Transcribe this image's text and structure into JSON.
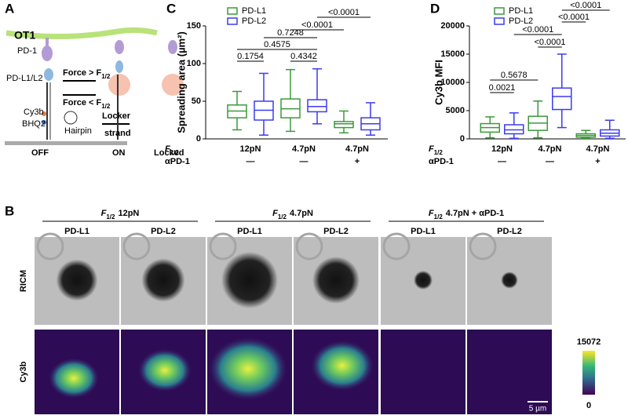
{
  "panel_a": {
    "letter": "A",
    "cell": "OT1",
    "receptor": "PD-1",
    "ligand": "PD-L1/L2",
    "force_high": "Force > F",
    "force_high_sub": "1/2",
    "force_low": "Force < F",
    "force_low_sub": "1/2",
    "dye": "Cy3b",
    "quencher": "BHQ2",
    "hairpin": "Hairpin",
    "locker": [
      "Locker",
      "strand"
    ],
    "states": [
      "OFF",
      "ON",
      "Locked"
    ]
  },
  "chart_data": [
    {
      "type": "box",
      "letter": "C",
      "y_label": "Spreading area (µm²)",
      "ylim": [
        0,
        150
      ],
      "yticks": [
        0,
        50,
        100,
        150
      ],
      "legend": "top-left",
      "x_rows": [
        {
          "label": "F",
          "label_sub": "1/2",
          "values": [
            "12pN",
            "4.7pN",
            "4.7pN"
          ]
        },
        {
          "label": "αPD-1",
          "values": [
            "—",
            "—",
            "+"
          ]
        }
      ],
      "series": [
        {
          "name": "PD-L1",
          "color": "#3a9a3a",
          "values": [
            {
              "min": 12,
              "q1": 28,
              "median": 37,
              "q3": 45,
              "max": 63
            },
            {
              "min": 10,
              "q1": 28,
              "median": 40,
              "q3": 53,
              "max": 92
            },
            {
              "min": 8,
              "q1": 15,
              "median": 20,
              "q3": 23,
              "max": 37
            }
          ]
        },
        {
          "name": "PD-L2",
          "color": "#3b3bf0",
          "values": [
            {
              "min": 5,
              "q1": 25,
              "median": 38,
              "q3": 50,
              "max": 87
            },
            {
              "min": 20,
              "q1": 36,
              "median": 43,
              "q3": 52,
              "max": 93
            },
            {
              "min": 5,
              "q1": 12,
              "median": 20,
              "q3": 28,
              "max": 48
            }
          ]
        }
      ],
      "p_values": [
        0.1754,
        0.4575,
        0.7248,
        0.4342,
        "<0.0001",
        "<0.0001"
      ]
    },
    {
      "type": "box",
      "letter": "D",
      "y_label": "Cy3b MFI",
      "ylim": [
        0,
        20000
      ],
      "yticks": [
        0,
        5000,
        10000,
        15000,
        20000
      ],
      "legend": "top-left",
      "x_rows": [
        {
          "label": "F",
          "label_sub": "1/2",
          "values": [
            "12pN",
            "4.7pN",
            "4.7pN"
          ]
        },
        {
          "label": "αPD-1",
          "values": [
            "—",
            "—",
            "+"
          ]
        }
      ],
      "series": [
        {
          "name": "PD-L1",
          "color": "#3a9a3a",
          "values": [
            {
              "min": 200,
              "q1": 1200,
              "median": 2000,
              "q3": 2700,
              "max": 3900
            },
            {
              "min": 200,
              "q1": 1500,
              "median": 2800,
              "q3": 4000,
              "max": 6700
            },
            {
              "min": 100,
              "q1": 300,
              "median": 600,
              "q3": 900,
              "max": 1500
            }
          ]
        },
        {
          "name": "PD-L2",
          "color": "#3b3bf0",
          "values": [
            {
              "min": 100,
              "q1": 900,
              "median": 1600,
              "q3": 2500,
              "max": 4600
            },
            {
              "min": 2000,
              "q1": 5200,
              "median": 7500,
              "q3": 9000,
              "max": 15000
            },
            {
              "min": 100,
              "q1": 500,
              "median": 1000,
              "q3": 1600,
              "max": 3300
            }
          ]
        }
      ],
      "p_values": [
        0.0021,
        0.5678,
        "<0.0001",
        "<0.0001",
        "<0.0001",
        "<0.0001"
      ]
    }
  ],
  "panel_b": {
    "letter": "B",
    "groups": [
      {
        "label": "F",
        "label_sub": "1/2",
        "condition": "12pN"
      },
      {
        "label": "F",
        "label_sub": "1/2",
        "condition": "4.7pN"
      },
      {
        "label": "F",
        "label_sub": "1/2",
        "condition": "4.7pN + αPD-1"
      }
    ],
    "columns": [
      "PD-L1",
      "PD-L2",
      "PD-L1",
      "PD-L2",
      "PD-L1",
      "PD-L2"
    ],
    "rows": [
      "RICM",
      "Cy3b"
    ],
    "colorbar": {
      "max": 15072,
      "min": 0
    },
    "scale_bar": "5 µm"
  }
}
